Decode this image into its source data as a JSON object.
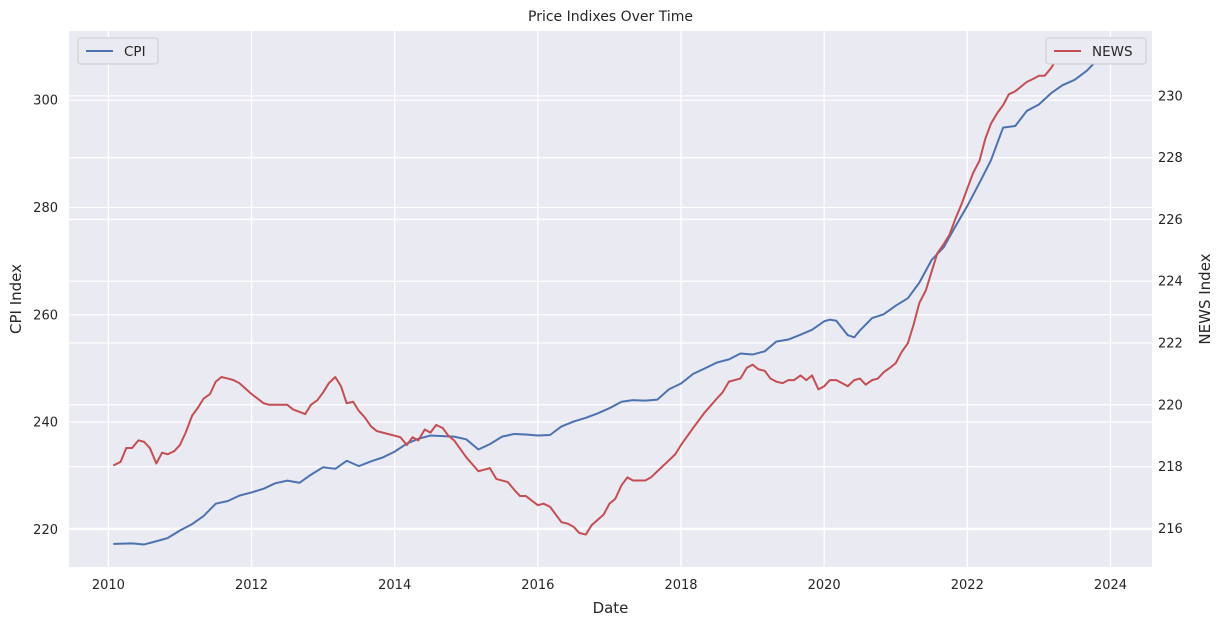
{
  "chart_data": {
    "type": "line",
    "title": "Price Indixes Over Time",
    "xlabel": "Date",
    "ylabel_left": "CPI Index",
    "ylabel_right": "NEWS Index",
    "x_range": [
      2009.45,
      2024.58
    ],
    "x_ticks": [
      2010,
      2012,
      2014,
      2016,
      2018,
      2020,
      2022,
      2024
    ],
    "ylim_left": [
      213.0,
      312.9
    ],
    "y_ticks_left": [
      220,
      240,
      260,
      280,
      300
    ],
    "ylim_right": [
      214.75,
      232.1
    ],
    "y_ticks_right": [
      216,
      218,
      220,
      222,
      224,
      226,
      228,
      230
    ],
    "grid": true,
    "colors": {
      "background": "#eaeaf2",
      "grid": "#ffffff",
      "CPI": "#4c72b0",
      "NEWS": "#c44e52",
      "text": "#262626"
    },
    "series": [
      {
        "name": "CPI",
        "axis": "left",
        "legend_position": "upper-left",
        "points": [
          [
            2010.08,
            217.3
          ],
          [
            2010.33,
            217.4
          ],
          [
            2010.5,
            217.2
          ],
          [
            2010.67,
            217.8
          ],
          [
            2010.83,
            218.4
          ],
          [
            2011.0,
            219.8
          ],
          [
            2011.17,
            221.0
          ],
          [
            2011.33,
            222.5
          ],
          [
            2011.5,
            224.8
          ],
          [
            2011.67,
            225.3
          ],
          [
            2011.83,
            226.3
          ],
          [
            2012.0,
            226.9
          ],
          [
            2012.17,
            227.6
          ],
          [
            2012.33,
            228.6
          ],
          [
            2012.5,
            229.1
          ],
          [
            2012.67,
            228.7
          ],
          [
            2012.83,
            230.2
          ],
          [
            2013.0,
            231.6
          ],
          [
            2013.17,
            231.3
          ],
          [
            2013.33,
            232.8
          ],
          [
            2013.5,
            231.8
          ],
          [
            2013.67,
            232.7
          ],
          [
            2013.83,
            233.4
          ],
          [
            2014.0,
            234.5
          ],
          [
            2014.17,
            236.0
          ],
          [
            2014.33,
            236.9
          ],
          [
            2014.5,
            237.5
          ],
          [
            2014.67,
            237.4
          ],
          [
            2014.83,
            237.3
          ],
          [
            2015.0,
            236.8
          ],
          [
            2015.17,
            234.9
          ],
          [
            2015.33,
            235.9
          ],
          [
            2015.5,
            237.3
          ],
          [
            2015.67,
            237.8
          ],
          [
            2015.83,
            237.7
          ],
          [
            2016.0,
            237.5
          ],
          [
            2016.17,
            237.6
          ],
          [
            2016.33,
            239.2
          ],
          [
            2016.5,
            240.1
          ],
          [
            2016.67,
            240.8
          ],
          [
            2016.83,
            241.6
          ],
          [
            2017.0,
            242.6
          ],
          [
            2017.17,
            243.8
          ],
          [
            2017.33,
            244.1
          ],
          [
            2017.5,
            244.0
          ],
          [
            2017.67,
            244.2
          ],
          [
            2017.83,
            246.1
          ],
          [
            2018.0,
            247.2
          ],
          [
            2018.17,
            249.0
          ],
          [
            2018.33,
            250.0
          ],
          [
            2018.5,
            251.1
          ],
          [
            2018.67,
            251.7
          ],
          [
            2018.83,
            252.8
          ],
          [
            2019.0,
            252.6
          ],
          [
            2019.17,
            253.2
          ],
          [
            2019.33,
            255.0
          ],
          [
            2019.5,
            255.4
          ],
          [
            2019.67,
            256.3
          ],
          [
            2019.83,
            257.2
          ],
          [
            2020.0,
            258.8
          ],
          [
            2020.08,
            259.1
          ],
          [
            2020.17,
            258.9
          ],
          [
            2020.33,
            256.2
          ],
          [
            2020.42,
            255.8
          ],
          [
            2020.5,
            257.1
          ],
          [
            2020.67,
            259.4
          ],
          [
            2020.83,
            260.1
          ],
          [
            2021.0,
            261.7
          ],
          [
            2021.17,
            263.1
          ],
          [
            2021.33,
            266.0
          ],
          [
            2021.5,
            270.2
          ],
          [
            2021.67,
            272.6
          ],
          [
            2021.83,
            276.4
          ],
          [
            2022.0,
            280.3
          ],
          [
            2022.17,
            284.6
          ],
          [
            2022.33,
            288.8
          ],
          [
            2022.5,
            294.9
          ],
          [
            2022.67,
            295.2
          ],
          [
            2022.83,
            298.0
          ],
          [
            2023.0,
            299.2
          ],
          [
            2023.17,
            301.3
          ],
          [
            2023.33,
            302.8
          ],
          [
            2023.5,
            303.8
          ],
          [
            2023.67,
            305.5
          ],
          [
            2023.83,
            307.7
          ],
          [
            2024.0,
            309.3
          ]
        ]
      },
      {
        "name": "NEWS",
        "axis": "right",
        "legend_position": "upper-right",
        "points": [
          [
            2010.08,
            218.05
          ],
          [
            2010.17,
            218.15
          ],
          [
            2010.25,
            218.6
          ],
          [
            2010.33,
            218.6
          ],
          [
            2010.42,
            218.85
          ],
          [
            2010.5,
            218.8
          ],
          [
            2010.58,
            218.6
          ],
          [
            2010.67,
            218.1
          ],
          [
            2010.75,
            218.45
          ],
          [
            2010.83,
            218.4
          ],
          [
            2010.92,
            218.5
          ],
          [
            2011.0,
            218.7
          ],
          [
            2011.08,
            219.1
          ],
          [
            2011.17,
            219.65
          ],
          [
            2011.25,
            219.9
          ],
          [
            2011.33,
            220.2
          ],
          [
            2011.42,
            220.35
          ],
          [
            2011.5,
            220.75
          ],
          [
            2011.58,
            220.9
          ],
          [
            2011.67,
            220.85
          ],
          [
            2011.75,
            220.8
          ],
          [
            2011.83,
            220.7
          ],
          [
            2012.0,
            220.35
          ],
          [
            2012.17,
            220.05
          ],
          [
            2012.25,
            220.0
          ],
          [
            2012.5,
            220.0
          ],
          [
            2012.58,
            219.85
          ],
          [
            2012.75,
            219.7
          ],
          [
            2012.83,
            220.0
          ],
          [
            2012.92,
            220.15
          ],
          [
            2013.0,
            220.4
          ],
          [
            2013.08,
            220.7
          ],
          [
            2013.17,
            220.9
          ],
          [
            2013.25,
            220.6
          ],
          [
            2013.33,
            220.05
          ],
          [
            2013.42,
            220.1
          ],
          [
            2013.5,
            219.8
          ],
          [
            2013.58,
            219.6
          ],
          [
            2013.67,
            219.3
          ],
          [
            2013.75,
            219.15
          ],
          [
            2014.0,
            219.0
          ],
          [
            2014.08,
            218.95
          ],
          [
            2014.17,
            218.7
          ],
          [
            2014.25,
            218.95
          ],
          [
            2014.33,
            218.85
          ],
          [
            2014.42,
            219.2
          ],
          [
            2014.5,
            219.1
          ],
          [
            2014.58,
            219.35
          ],
          [
            2014.67,
            219.25
          ],
          [
            2014.75,
            219.0
          ],
          [
            2014.83,
            218.85
          ],
          [
            2015.0,
            218.3
          ],
          [
            2015.17,
            217.85
          ],
          [
            2015.25,
            217.9
          ],
          [
            2015.33,
            217.95
          ],
          [
            2015.42,
            217.6
          ],
          [
            2015.58,
            217.5
          ],
          [
            2015.67,
            217.25
          ],
          [
            2015.75,
            217.05
          ],
          [
            2015.83,
            217.05
          ],
          [
            2016.0,
            216.75
          ],
          [
            2016.08,
            216.8
          ],
          [
            2016.17,
            216.7
          ],
          [
            2016.25,
            216.45
          ],
          [
            2016.33,
            216.2
          ],
          [
            2016.42,
            216.15
          ],
          [
            2016.5,
            216.05
          ],
          [
            2016.58,
            215.85
          ],
          [
            2016.67,
            215.8
          ],
          [
            2016.75,
            216.1
          ],
          [
            2016.92,
            216.45
          ],
          [
            2017.0,
            216.8
          ],
          [
            2017.08,
            216.95
          ],
          [
            2017.17,
            217.4
          ],
          [
            2017.25,
            217.65
          ],
          [
            2017.33,
            217.55
          ],
          [
            2017.5,
            217.55
          ],
          [
            2017.58,
            217.65
          ],
          [
            2017.67,
            217.85
          ],
          [
            2017.83,
            218.2
          ],
          [
            2017.92,
            218.4
          ],
          [
            2018.0,
            218.7
          ],
          [
            2018.17,
            219.25
          ],
          [
            2018.33,
            219.75
          ],
          [
            2018.5,
            220.2
          ],
          [
            2018.58,
            220.4
          ],
          [
            2018.67,
            220.75
          ],
          [
            2018.83,
            220.85
          ],
          [
            2018.92,
            221.2
          ],
          [
            2019.0,
            221.3
          ],
          [
            2019.08,
            221.15
          ],
          [
            2019.17,
            221.1
          ],
          [
            2019.25,
            220.85
          ],
          [
            2019.33,
            220.75
          ],
          [
            2019.42,
            220.7
          ],
          [
            2019.5,
            220.8
          ],
          [
            2019.58,
            220.8
          ],
          [
            2019.67,
            220.95
          ],
          [
            2019.75,
            220.8
          ],
          [
            2019.83,
            220.95
          ],
          [
            2019.92,
            220.5
          ],
          [
            2020.0,
            220.6
          ],
          [
            2020.08,
            220.8
          ],
          [
            2020.17,
            220.8
          ],
          [
            2020.25,
            220.7
          ],
          [
            2020.33,
            220.6
          ],
          [
            2020.42,
            220.8
          ],
          [
            2020.5,
            220.85
          ],
          [
            2020.58,
            220.65
          ],
          [
            2020.67,
            220.8
          ],
          [
            2020.75,
            220.85
          ],
          [
            2020.83,
            221.05
          ],
          [
            2020.92,
            221.2
          ],
          [
            2021.0,
            221.35
          ],
          [
            2021.08,
            221.7
          ],
          [
            2021.17,
            222.0
          ],
          [
            2021.25,
            222.6
          ],
          [
            2021.33,
            223.3
          ],
          [
            2021.42,
            223.7
          ],
          [
            2021.5,
            224.3
          ],
          [
            2021.58,
            224.9
          ],
          [
            2021.67,
            225.2
          ],
          [
            2021.75,
            225.5
          ],
          [
            2021.83,
            226.0
          ],
          [
            2021.92,
            226.5
          ],
          [
            2022.0,
            227.0
          ],
          [
            2022.08,
            227.5
          ],
          [
            2022.17,
            227.9
          ],
          [
            2022.25,
            228.6
          ],
          [
            2022.33,
            229.1
          ],
          [
            2022.42,
            229.45
          ],
          [
            2022.5,
            229.7
          ],
          [
            2022.58,
            230.05
          ],
          [
            2022.67,
            230.15
          ],
          [
            2022.75,
            230.3
          ],
          [
            2022.83,
            230.45
          ],
          [
            2022.92,
            230.55
          ],
          [
            2023.0,
            230.65
          ],
          [
            2023.08,
            230.65
          ],
          [
            2023.17,
            230.9
          ],
          [
            2023.25,
            231.2
          ],
          [
            2023.42,
            231.25
          ],
          [
            2023.5,
            231.35
          ],
          [
            2023.58,
            231.1
          ],
          [
            2023.67,
            231.2
          ],
          [
            2023.75,
            231.35
          ],
          [
            2023.83,
            231.4
          ],
          [
            2023.92,
            231.55
          ],
          [
            2024.0,
            231.6
          ]
        ]
      }
    ]
  }
}
